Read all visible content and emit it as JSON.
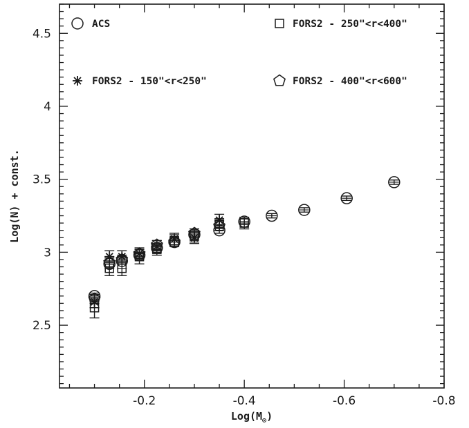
{
  "chart_data": {
    "type": "scatter",
    "xlabel": "Log(M",
    "xlabel_sub": "⊙",
    "xlabel_suffix": ")",
    "ylabel": "Log(N) + const.",
    "xlim": [
      -0.03,
      -0.8
    ],
    "ylim": [
      2.07,
      4.7
    ],
    "x_ticks": [
      -0.2,
      -0.4,
      -0.6,
      -0.8
    ],
    "x_tick_labels": [
      "-0.2",
      "-0.4",
      "-0.6",
      "-0.8"
    ],
    "y_ticks": [
      2.5,
      3,
      3.5,
      4,
      4.5
    ],
    "y_tick_labels": [
      "2.5",
      "3",
      "3.5",
      "4",
      "4.5"
    ],
    "grid": false,
    "legend_layout": "inside plot, two rows of two entries",
    "series": [
      {
        "name": "ACS",
        "marker": "circle",
        "x": [
          -0.1,
          -0.13,
          -0.155,
          -0.19,
          -0.225,
          -0.26,
          -0.3,
          -0.35,
          -0.4,
          -0.455,
          -0.52,
          -0.605,
          -0.7
        ],
        "y": [
          2.7,
          2.92,
          2.94,
          2.98,
          3.03,
          3.07,
          3.12,
          3.15,
          3.21,
          3.25,
          3.29,
          3.37,
          3.48
        ],
        "err": [
          0.02,
          0.02,
          0.02,
          0.02,
          0.02,
          0.02,
          0.02,
          0.02,
          0.02,
          0.015,
          0.015,
          0.015,
          0.015
        ]
      },
      {
        "name": "FORS2 - 150\"<r<250\"",
        "marker": "asterisk",
        "x": [
          -0.1,
          -0.13,
          -0.155,
          -0.19,
          -0.225,
          -0.26,
          -0.3,
          -0.35
        ],
        "y": [
          2.66,
          2.97,
          2.97,
          2.99,
          3.04,
          3.09,
          3.1,
          3.22
        ],
        "err": [
          0.04,
          0.04,
          0.04,
          0.04,
          0.04,
          0.04,
          0.04,
          0.04
        ]
      },
      {
        "name": "FORS2 - 250\"<r<400\"",
        "marker": "square",
        "x": [
          -0.1,
          -0.13,
          -0.155,
          -0.19,
          -0.225,
          -0.26,
          -0.3,
          -0.35,
          -0.4
        ],
        "y": [
          2.62,
          2.89,
          2.89,
          2.97,
          3.02,
          3.08,
          3.11,
          3.19,
          3.2
        ],
        "err": [
          0.07,
          0.05,
          0.05,
          0.05,
          0.04,
          0.04,
          0.04,
          0.04,
          0.04
        ]
      },
      {
        "name": "FORS2 - 400\"<r<600\"",
        "marker": "pentagon",
        "x": [
          -0.1,
          -0.13,
          -0.155,
          -0.19,
          -0.225,
          -0.26,
          -0.3,
          -0.35
        ],
        "y": [
          2.68,
          2.93,
          2.95,
          2.99,
          3.05,
          3.07,
          3.13,
          3.18
        ],
        "err": [
          0.03,
          0.03,
          0.03,
          0.03,
          0.03,
          0.03,
          0.03,
          0.03
        ]
      }
    ]
  }
}
